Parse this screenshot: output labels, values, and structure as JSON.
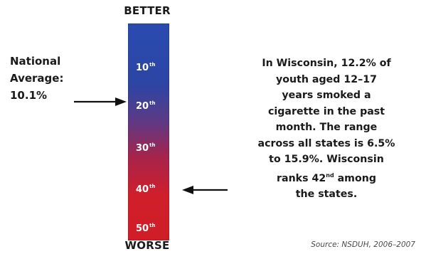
{
  "scale": {
    "top_label": "BETTER",
    "bottom_label": "WORSE",
    "colors": {
      "top": "#2a4bb0",
      "middle": "#5c3a85",
      "bottom": "#d11f2a"
    },
    "ranks": [
      {
        "num": "10",
        "suffix": "th"
      },
      {
        "num": "20",
        "suffix": "th"
      },
      {
        "num": "30",
        "suffix": "th"
      },
      {
        "num": "40",
        "suffix": "th"
      },
      {
        "num": "50",
        "suffix": "th"
      }
    ]
  },
  "national_average": {
    "line1": "National",
    "line2": "Average:",
    "value": "10.1%"
  },
  "description": {
    "line1": "In Wisconsin, 12.2% of",
    "line2": "youth aged 12–17",
    "line3": "years smoked a",
    "line4": "cigarette in the past",
    "line5": "month. The range",
    "line6": "across all states is 6.5%",
    "line7": "to 15.9%.  Wisconsin",
    "line8_pre": "ranks 42",
    "line8_sup": "nd",
    "line8_post": " among",
    "line9": "the states."
  },
  "source": "Source: NSDUH, 2006–2007",
  "icons": {
    "national_arrow": "arrow-right-icon",
    "state_arrow": "arrow-left-icon"
  }
}
